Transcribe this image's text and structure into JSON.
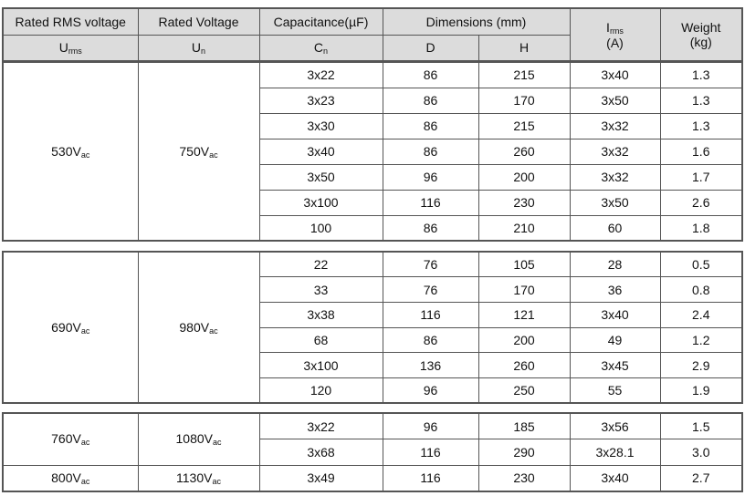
{
  "header": {
    "row1": [
      "Rated RMS voltage",
      "Rated Voltage",
      "Capacitance(µF)",
      "Dimensions (mm)"
    ],
    "irms": {
      "base": "I",
      "sub": "rms",
      "unit": "(A)"
    },
    "weight": {
      "label": "Weight",
      "unit": "(kg)"
    },
    "row2": [
      {
        "base": "U",
        "sub": "rms"
      },
      {
        "base": "U",
        "sub": "n"
      },
      {
        "base": "C",
        "sub": "n"
      },
      {
        "base": "D",
        "sub": ""
      },
      {
        "base": "H",
        "sub": ""
      }
    ]
  },
  "tables": [
    [
      {
        "urms": {
          "base": "530V",
          "sub": "ac"
        },
        "un": {
          "base": "750V",
          "sub": "ac"
        },
        "rows": [
          [
            "3x22",
            "86",
            "215",
            "3x40",
            "1.3"
          ],
          [
            "3x23",
            "86",
            "170",
            "3x50",
            "1.3"
          ],
          [
            "3x30",
            "86",
            "215",
            "3x32",
            "1.3"
          ],
          [
            "3x40",
            "86",
            "260",
            "3x32",
            "1.6"
          ],
          [
            "3x50",
            "96",
            "200",
            "3x32",
            "1.7"
          ],
          [
            "3x100",
            "116",
            "230",
            "3x50",
            "2.6"
          ],
          [
            "100",
            "86",
            "210",
            "60",
            "1.8"
          ]
        ]
      }
    ],
    [
      {
        "urms": {
          "base": "690V",
          "sub": "ac"
        },
        "un": {
          "base": "980V",
          "sub": "ac"
        },
        "rows": [
          [
            "22",
            "76",
            "105",
            "28",
            "0.5"
          ],
          [
            "33",
            "76",
            "170",
            "36",
            "0.8"
          ],
          [
            "3x38",
            "116",
            "121",
            "3x40",
            "2.4"
          ],
          [
            "68",
            "86",
            "200",
            "49",
            "1.2"
          ],
          [
            "3x100",
            "136",
            "260",
            "3x45",
            "2.9"
          ],
          [
            "120",
            "96",
            "250",
            "55",
            "1.9"
          ]
        ]
      }
    ],
    [
      {
        "urms": {
          "base": "760V",
          "sub": "ac"
        },
        "un": {
          "base": "1080V",
          "sub": "ac"
        },
        "rows": [
          [
            "3x22",
            "96",
            "185",
            "3x56",
            "1.5"
          ],
          [
            "3x68",
            "116",
            "290",
            "3x28.1",
            "3.0"
          ]
        ]
      },
      {
        "urms": {
          "base": "800V",
          "sub": "ac"
        },
        "un": {
          "base": "1130V",
          "sub": "ac"
        },
        "rows": [
          [
            "3x49",
            "116",
            "230",
            "3x40",
            "2.7"
          ]
        ]
      }
    ]
  ]
}
